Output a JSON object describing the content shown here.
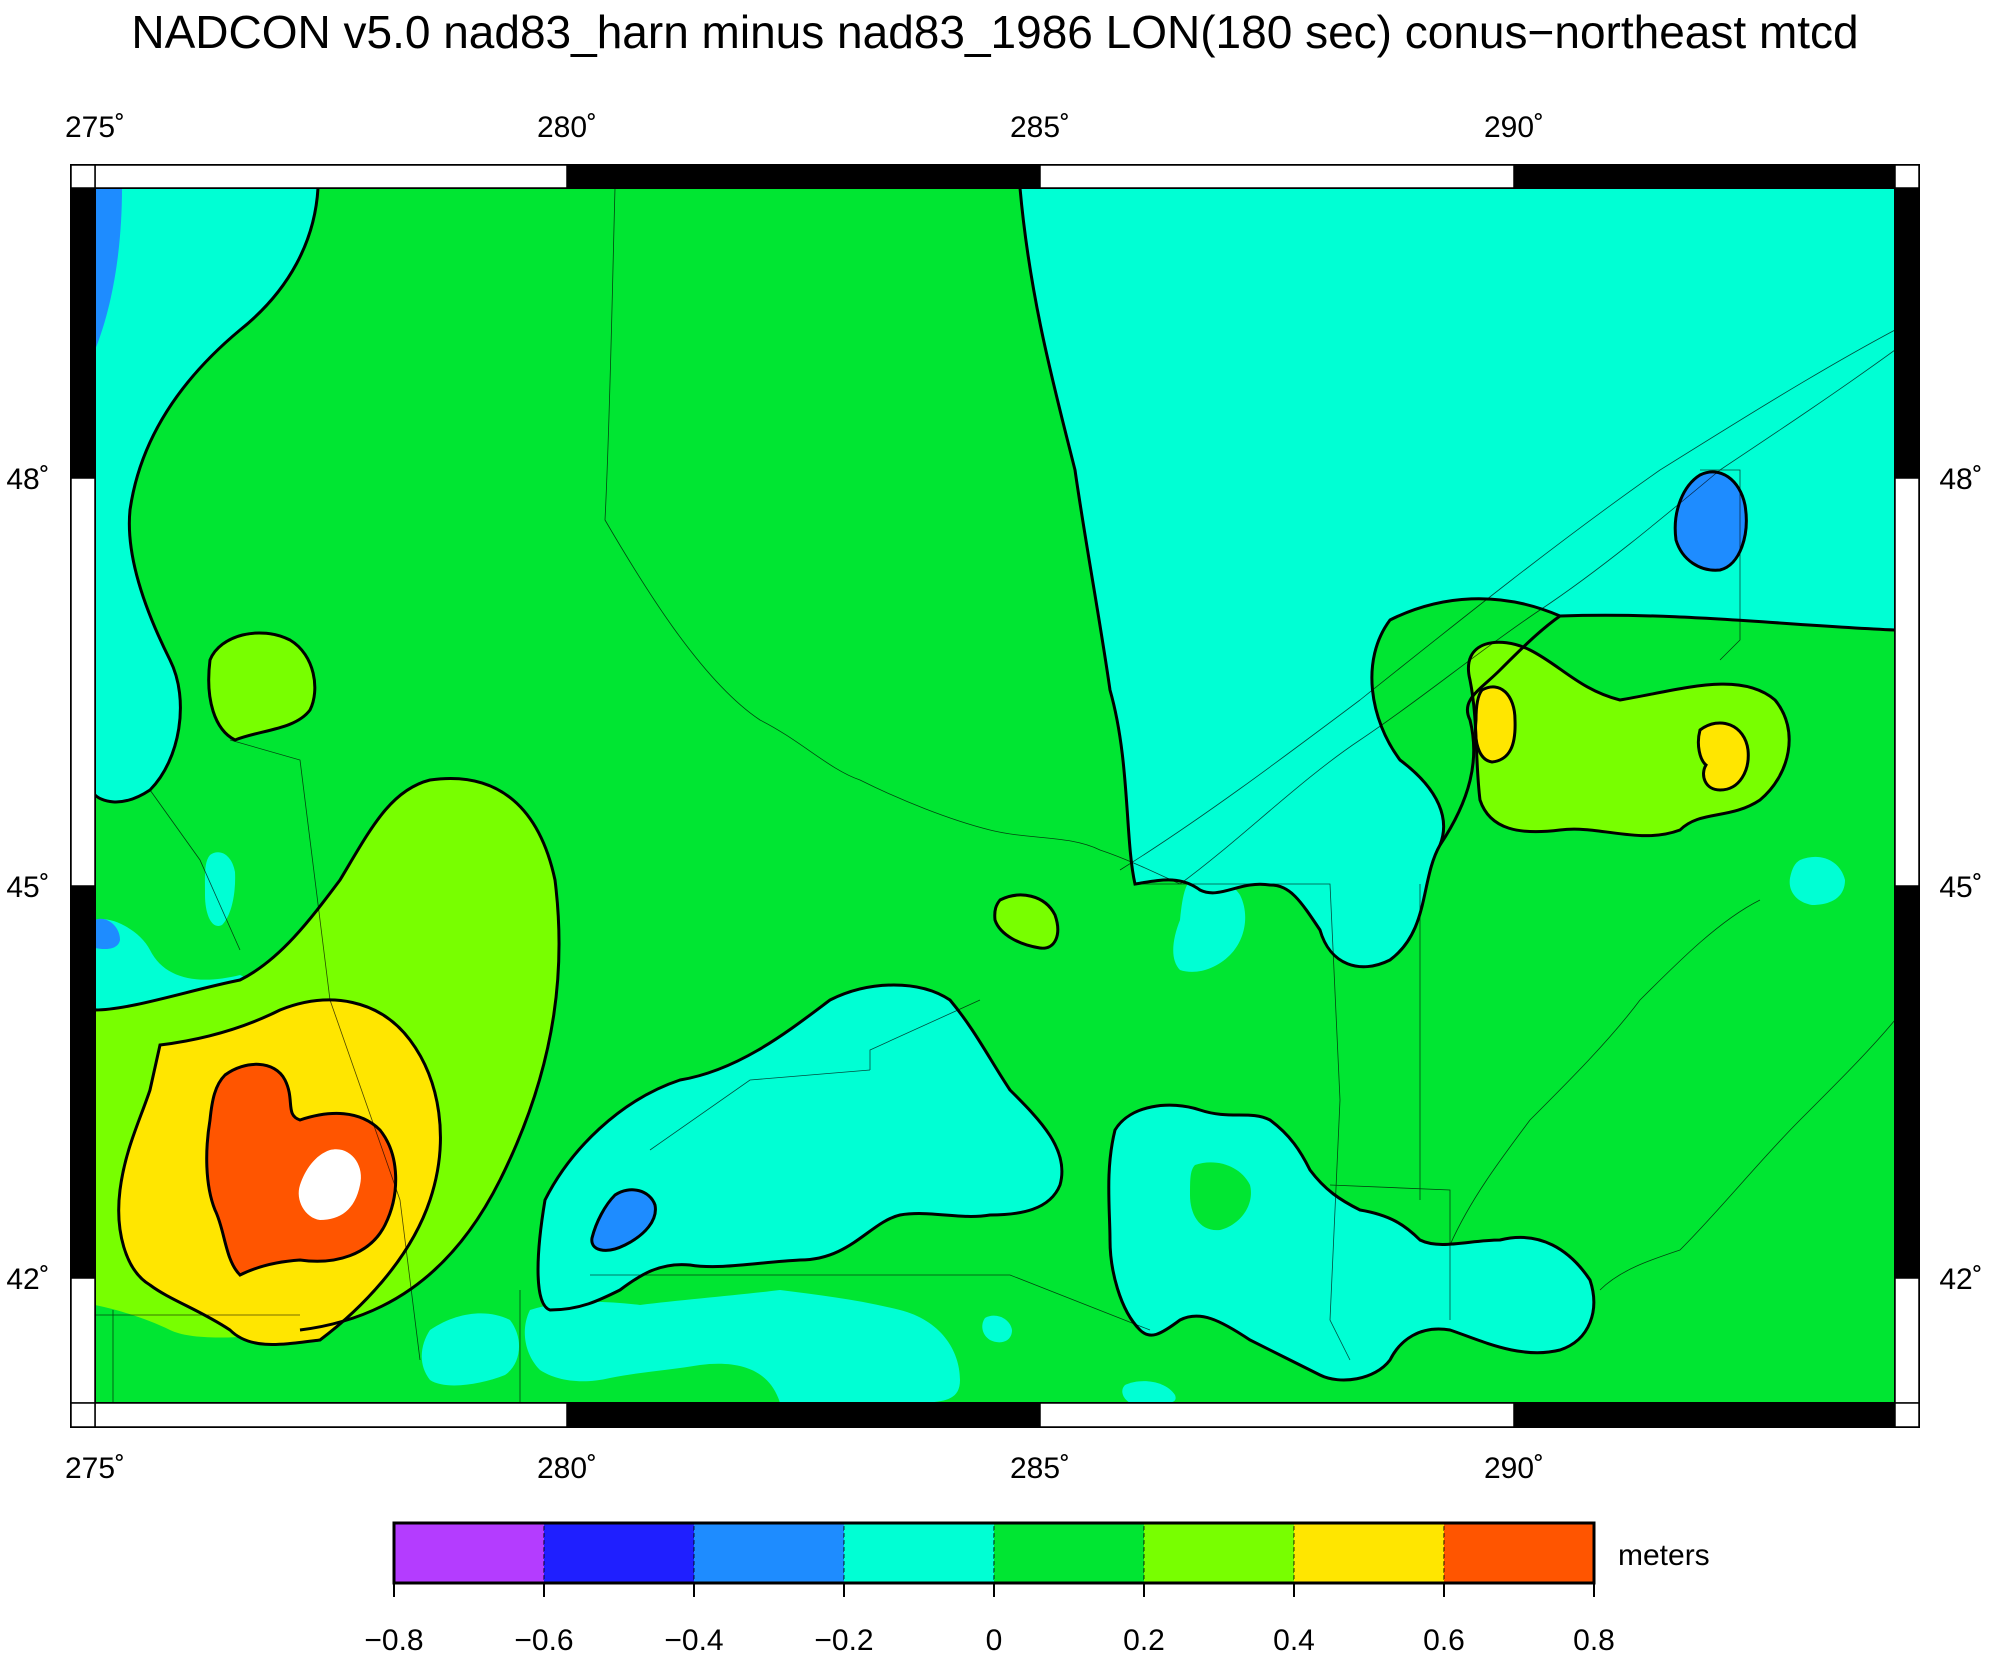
{
  "title": "NADCON v5.0 nad83_harn minus nad83_1986 LON(180 sec) conus−northeast mtcd",
  "lon_ticks": [
    {
      "value": 275,
      "label": "275˚"
    },
    {
      "value": 280,
      "label": "280˚"
    },
    {
      "value": 285,
      "label": "285˚"
    },
    {
      "value": 290,
      "label": "290˚"
    }
  ],
  "lat_ticks": [
    {
      "value": 48,
      "label": "48˚"
    },
    {
      "value": 45,
      "label": "45˚"
    },
    {
      "value": 42,
      "label": "42˚"
    }
  ],
  "colorbar": {
    "unit_label": "meters",
    "tick_labels": [
      "−0.8",
      "−0.6",
      "−0.4",
      "−0.2",
      "0",
      "0.2",
      "0.4",
      "0.6",
      "0.8"
    ],
    "bins": [
      {
        "from": -0.8,
        "to": -0.6,
        "color": "#b43cff"
      },
      {
        "from": -0.6,
        "to": -0.4,
        "color": "#1f1fff"
      },
      {
        "from": -0.4,
        "to": -0.2,
        "color": "#1e8cff"
      },
      {
        "from": -0.2,
        "to": 0.0,
        "color": "#00ffd4"
      },
      {
        "from": 0.0,
        "to": 0.2,
        "color": "#00e632"
      },
      {
        "from": 0.2,
        "to": 0.4,
        "color": "#78ff00"
      },
      {
        "from": 0.4,
        "to": 0.6,
        "color": "#ffe600"
      },
      {
        "from": 0.6,
        "to": 0.8,
        "color": "#ff5500"
      }
    ]
  },
  "colors": {
    "cyan_band": "#00ffd4",
    "green_band": "#00e632",
    "lime_band": "#78ff00",
    "yellow_band": "#ffe600",
    "orange_band": "#ff5500",
    "blue_band": "#1e8cff",
    "peak_white": "#ffffff",
    "contour_line": "#000000",
    "frame_black": "#000000",
    "frame_white": "#ffffff"
  }
}
